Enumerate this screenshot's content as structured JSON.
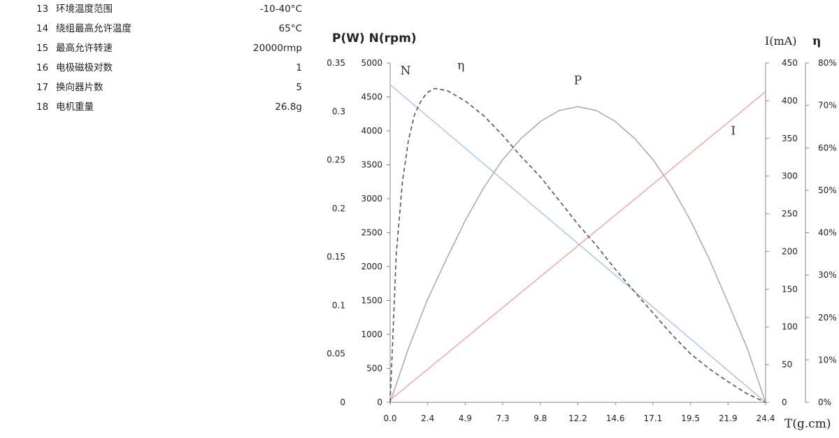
{
  "spec_table": {
    "rows": [
      {
        "no": "13",
        "name": "环境温度范围",
        "value": "-10-40°C"
      },
      {
        "no": "14",
        "name": "绕组最高允许温度",
        "value": "65°C"
      },
      {
        "no": "15",
        "name": "最高允许转速",
        "value": "20000rmp"
      },
      {
        "no": "16",
        "name": "电极磁极对数",
        "value": "1"
      },
      {
        "no": "17",
        "name": "换向器片数",
        "value": "5"
      },
      {
        "no": "18",
        "name": "电机重量",
        "value": "26.8g"
      }
    ]
  },
  "chart_data": {
    "type": "line",
    "axis_titles": {
      "left": "P(W) N(rpm)",
      "right_current": "I(mA)",
      "right_efficiency": "η",
      "x": "T(g.cm)"
    },
    "x_ticks": [
      "0.0",
      "2.4",
      "4.9",
      "7.3",
      "9.8",
      "12.2",
      "14.6",
      "17.1",
      "19.5",
      "21.9",
      "24.4"
    ],
    "xlim": [
      0,
      24.4
    ],
    "y_axes": {
      "power": {
        "ticks": [
          "0",
          "0.05",
          "0.1",
          "0.15",
          "0.2",
          "0.25",
          "0.3",
          "0.35"
        ],
        "range": [
          0,
          0.35
        ]
      },
      "speed": {
        "ticks": [
          "0",
          "500",
          "1000",
          "1500",
          "2000",
          "2500",
          "3000",
          "3500",
          "4000",
          "4500",
          "5000"
        ],
        "range": [
          0,
          5000
        ]
      },
      "current": {
        "ticks": [
          "0",
          "50",
          "100",
          "150",
          "200",
          "250",
          "300",
          "350",
          "400",
          "450"
        ],
        "range": [
          0,
          450
        ]
      },
      "efficiency": {
        "ticks": [
          "0%",
          "10%",
          "20%",
          "30%",
          "40%",
          "50%",
          "60%",
          "70%",
          "80%"
        ],
        "range": [
          0,
          80
        ]
      }
    },
    "series": [
      {
        "name": "N",
        "axis": "speed",
        "style": "solid",
        "color": "#a9c8e8",
        "x": [
          0,
          24.4
        ],
        "y": [
          4680,
          0
        ]
      },
      {
        "name": "I",
        "axis": "current",
        "style": "solid",
        "color": "#eea9a0",
        "x": [
          0,
          24.4
        ],
        "y": [
          3,
          412
        ]
      },
      {
        "name": "P",
        "axis": "power",
        "style": "solid",
        "color": "#a8a8a8",
        "x": [
          0,
          1.2,
          2.4,
          3.7,
          4.9,
          6.1,
          7.3,
          8.5,
          9.8,
          11.0,
          12.2,
          13.4,
          14.6,
          15.9,
          17.1,
          18.3,
          19.5,
          20.7,
          21.9,
          23.2,
          24.4
        ],
        "y": [
          0,
          0.056,
          0.105,
          0.149,
          0.188,
          0.222,
          0.25,
          0.272,
          0.29,
          0.301,
          0.305,
          0.301,
          0.29,
          0.272,
          0.25,
          0.222,
          0.188,
          0.149,
          0.105,
          0.056,
          0
        ]
      },
      {
        "name": "η",
        "axis": "efficiency",
        "style": "dashed",
        "color": "#555555",
        "x": [
          0,
          0.4,
          0.8,
          1.2,
          1.6,
          2.0,
          2.4,
          2.9,
          3.7,
          4.9,
          6.1,
          7.3,
          8.5,
          9.8,
          11.0,
          12.2,
          13.4,
          14.6,
          15.9,
          17.1,
          18.3,
          19.5,
          20.7,
          21.9,
          23.2,
          24.4
        ],
        "y": [
          0,
          35,
          52,
          62,
          68,
          71,
          73,
          74,
          73.5,
          71,
          67.5,
          63,
          58,
          53,
          47.5,
          42,
          37,
          31.5,
          26,
          21,
          16,
          11.5,
          8,
          5,
          2,
          0
        ]
      }
    ],
    "curve_labels": [
      {
        "text": "N",
        "x": 1.0,
        "axis": "speed",
        "y": 4830
      },
      {
        "text": "η",
        "x": 4.6,
        "axis": "efficiency",
        "y": 78.5
      },
      {
        "text": "P",
        "x": 12.2,
        "axis": "power",
        "y": 0.328
      },
      {
        "text": "I",
        "x": 22.3,
        "axis": "current",
        "y": 355
      }
    ],
    "colors": {
      "axis": "#888888",
      "text": "#222222"
    }
  }
}
